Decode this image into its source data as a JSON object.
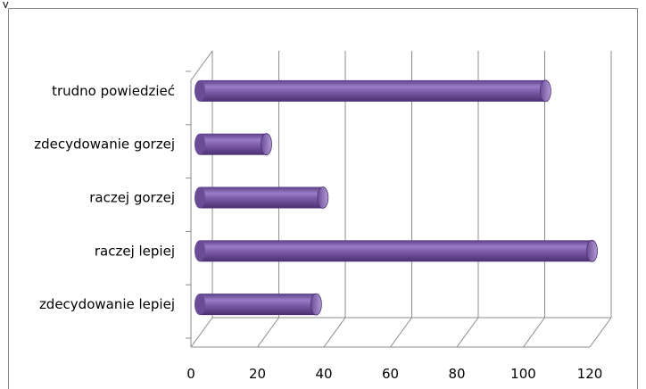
{
  "fragment_text": "y",
  "chart_data": {
    "type": "bar",
    "orientation": "horizontal",
    "style": "3d-cylinder",
    "categories": [
      "trudno powiedzieć",
      "zdecydowanie gorzej",
      "raczej gorzej",
      "raczej lepiej",
      "zdecydowanie lepiej"
    ],
    "values": [
      104,
      20,
      37,
      118,
      35
    ],
    "xlim": [
      0,
      120
    ],
    "xticks": [
      "0",
      "20",
      "40",
      "60",
      "80",
      "100",
      "120"
    ],
    "grid": true,
    "legend": false,
    "color": "#7b5aa6"
  }
}
